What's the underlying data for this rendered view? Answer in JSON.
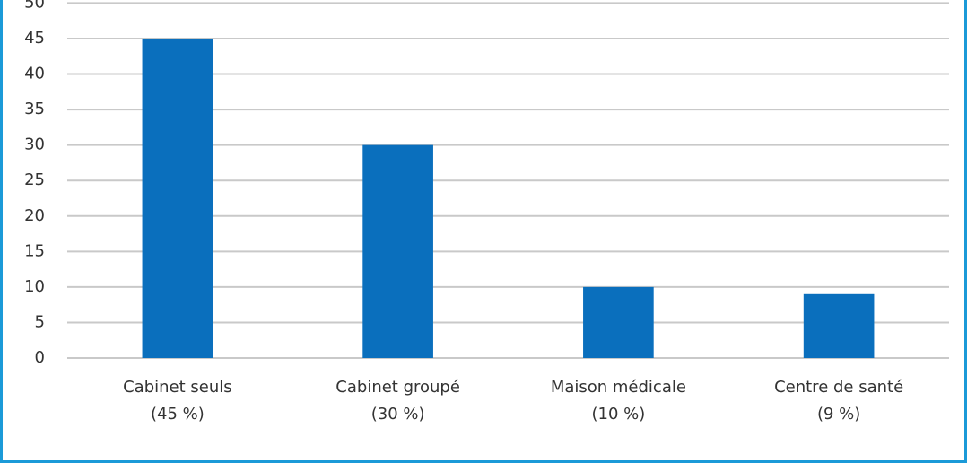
{
  "chart_data": {
    "type": "bar",
    "categories": [
      "Cabinet seuls\n(45 %)",
      "Cabinet groupé\n(30 %)",
      "Maison médicale\n(10 %)",
      "Centre de santé\n(9 %)"
    ],
    "values": [
      45,
      30,
      10,
      9
    ],
    "color": "#0a6fbd",
    "ylim": [
      0,
      50
    ],
    "yticks": [
      0,
      5,
      10,
      15,
      20,
      25,
      30,
      35,
      40,
      45,
      50
    ],
    "grid": true
  }
}
